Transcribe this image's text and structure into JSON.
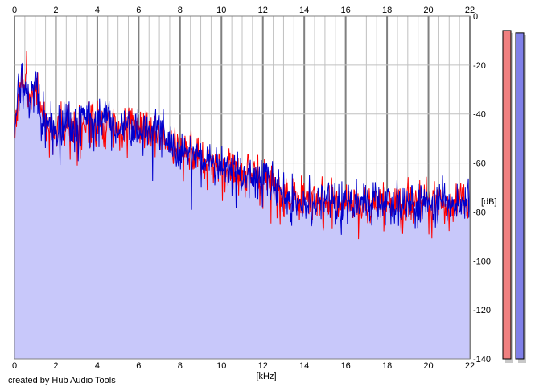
{
  "footer": {
    "credit": "created by Hub Audio Tools"
  },
  "colors": {
    "background": "#ffffff",
    "fill": "#c8c8fa",
    "channel_left": "#ff0000",
    "channel_right": "#0000cc",
    "grid_minor": "#c0c0c0",
    "grid_major": "#808080",
    "meter_left": "#f08080",
    "meter_right": "#8080e8"
  },
  "chart_data": {
    "type": "line",
    "xlabel": "[kHz]",
    "ylabel": "[dB]",
    "xlim": [
      0,
      22
    ],
    "ylim": [
      -140,
      0
    ],
    "x_ticks": [
      "0",
      "2",
      "4",
      "6",
      "8",
      "10",
      "12",
      "14",
      "16",
      "18",
      "20",
      "22"
    ],
    "y_ticks": [
      "0",
      "-20",
      "-40",
      "-60",
      "-80",
      "-100",
      "-120",
      "-140"
    ],
    "grid": true,
    "filled_area": true,
    "envelope": {
      "x": [
        0,
        0.2,
        0.4,
        0.6,
        0.8,
        1.0,
        1.2,
        1.5,
        2.0,
        2.5,
        3.0,
        3.5,
        4.0,
        4.5,
        5.0,
        5.5,
        6.0,
        6.5,
        7.0,
        7.5,
        8.0,
        8.5,
        9.0,
        9.5,
        10.0,
        10.5,
        11.0,
        11.5,
        12.0,
        12.5,
        13.0,
        13.5,
        14.0,
        15.0,
        16.0,
        17.0,
        18.0,
        19.0,
        20.0,
        21.0,
        22.0
      ],
      "y": [
        -50,
        -30,
        -27,
        -32,
        -34,
        -29,
        -35,
        -43,
        -46,
        -45,
        -44,
        -43,
        -44,
        -43,
        -45,
        -44,
        -45,
        -47,
        -48,
        -52,
        -55,
        -56,
        -58,
        -60,
        -62,
        -63,
        -64,
        -64,
        -66,
        -68,
        -75,
        -75,
        -76,
        -76,
        -77,
        -77,
        -77,
        -77,
        -76,
        -77,
        -77
      ]
    },
    "series": [
      {
        "channel": "left",
        "color": "#ff0000",
        "seed": 7
      },
      {
        "channel": "right",
        "color": "#0000cc",
        "seed": 13
      }
    ],
    "meters": {
      "left_db": -2,
      "right_db": -3
    }
  }
}
